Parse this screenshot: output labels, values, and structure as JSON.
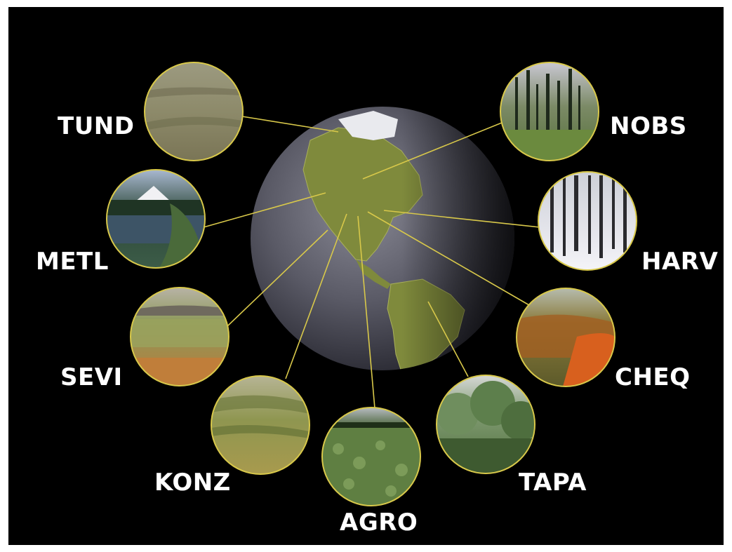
{
  "sites": [
    {
      "id": "tund",
      "label": "TUND",
      "scene": "tundra-photo"
    },
    {
      "id": "nobs",
      "label": "NOBS",
      "scene": "boreal-forest-photo"
    },
    {
      "id": "metl",
      "label": "METL",
      "scene": "mountain-lake-photo"
    },
    {
      "id": "harv",
      "label": "HARV",
      "scene": "winter-forest-photo"
    },
    {
      "id": "sevi",
      "label": "SEVI",
      "scene": "desert-grassland-photo"
    },
    {
      "id": "cheq",
      "label": "CHEQ",
      "scene": "autumn-forest-photo"
    },
    {
      "id": "konz",
      "label": "KONZ",
      "scene": "prairie-photo"
    },
    {
      "id": "tapa",
      "label": "TAPA",
      "scene": "tropical-forest-photo"
    },
    {
      "id": "agro",
      "label": "AGRO",
      "scene": "cropland-photo"
    }
  ],
  "colors": {
    "background": "#000000",
    "connector": "#d8c84a",
    "label": "#ffffff",
    "globe_ocean": "#55555f",
    "land": "#7f8a3c"
  }
}
